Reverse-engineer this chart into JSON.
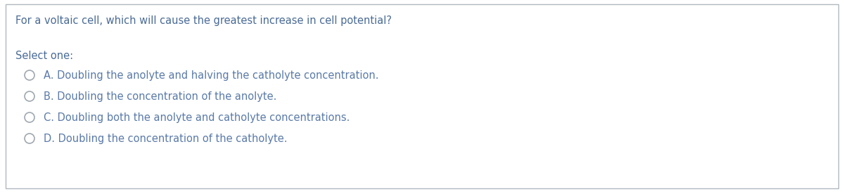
{
  "title": "For a voltaic cell, which will cause the greatest increase in cell potential?",
  "select_label": "Select one:",
  "options": [
    "A. Doubling the anolyte and halving the catholyte concentration.",
    "B. Doubling the concentration of the anolyte.",
    "C. Doubling both the anolyte and catholyte concentrations.",
    "D. Doubling the concentration of the catholyte."
  ],
  "title_color": "#4a6b96",
  "text_color": "#5a7aa8",
  "select_color": "#4a6b96",
  "background_color": "#ffffff",
  "border_color": "#b0b8c0",
  "circle_color": "#a0a8b0",
  "title_fontsize": 10.5,
  "options_fontsize": 10.5,
  "select_fontsize": 10.5
}
